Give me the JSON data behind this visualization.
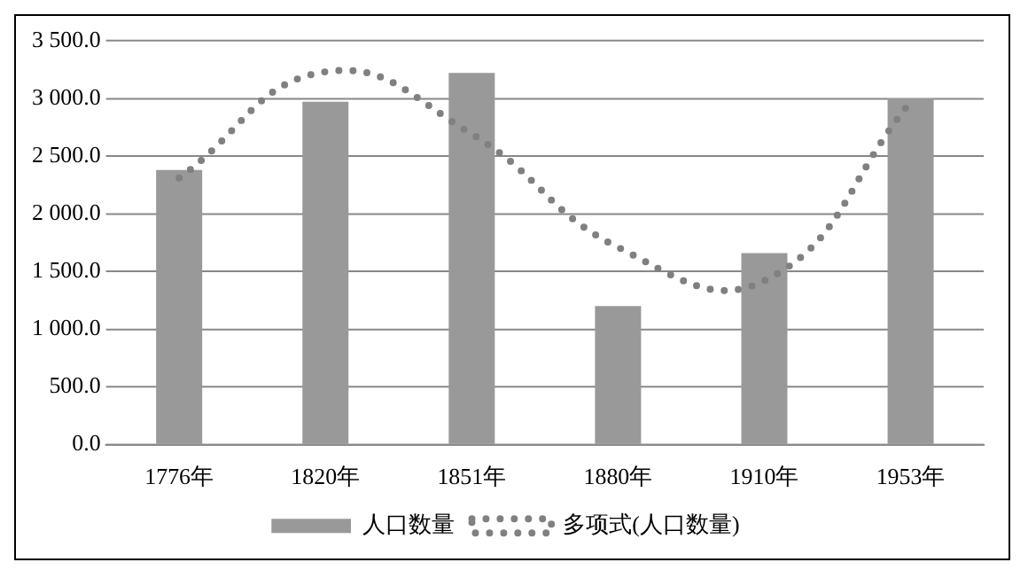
{
  "chart_data": {
    "type": "bar",
    "categories": [
      "1776年",
      "1820年",
      "1851年",
      "1880年",
      "1910年",
      "1953年"
    ],
    "series": [
      {
        "name": "人口数量",
        "color": "#999999",
        "values": [
          2380,
          2970,
          3220,
          1200,
          1660,
          3000
        ]
      },
      {
        "name": "多项式(人口数量)",
        "type": "line",
        "color": "#808080",
        "line_style": "dotted",
        "values": [
          2310,
          3230,
          2690,
          1710,
          1420,
          2970
        ]
      }
    ],
    "ylim": [
      0,
      3500
    ],
    "yticks": [
      {
        "value": 0,
        "label": "0.0"
      },
      {
        "value": 500,
        "label": "500.0"
      },
      {
        "value": 1000,
        "label": "1 000.0"
      },
      {
        "value": 1500,
        "label": "1 500.0"
      },
      {
        "value": 2000,
        "label": "2 000.0"
      },
      {
        "value": 2500,
        "label": "2 500.0"
      },
      {
        "value": 3000,
        "label": "3 000.0"
      },
      {
        "value": 3500,
        "label": "3 500.0"
      }
    ],
    "grid": "y",
    "legend": "bottom"
  }
}
